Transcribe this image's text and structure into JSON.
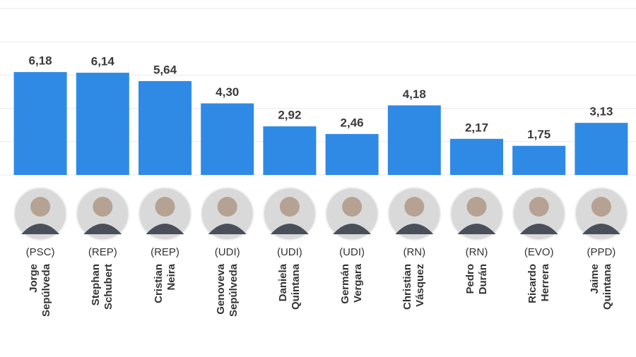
{
  "chart_data": {
    "type": "bar",
    "categories": [
      "Jorge\nSepúlveda",
      "Stephan\nSchubert",
      "Cristian\nNeira",
      "Genoveva\nSepúlveda",
      "Daniela\nQuintana",
      "Germán\nVergara",
      "Christian\nVásquez",
      "Pedro\nDurán",
      "Ricardo\nHerrera",
      "Jaime\nQuintana"
    ],
    "parties": [
      "(PSC)",
      "(REP)",
      "(REP)",
      "(UDI)",
      "(UDI)",
      "(UDI)",
      "(RN)",
      "(RN)",
      "(EVO)",
      "(PPD)"
    ],
    "values": [
      6.18,
      6.14,
      5.64,
      4.3,
      2.92,
      2.46,
      4.18,
      2.17,
      1.75,
      3.13
    ],
    "value_labels": [
      "6,18",
      "6,14",
      "5,64",
      "4,30",
      "2,92",
      "2,46",
      "4,18",
      "2,17",
      "1,75",
      "3,13"
    ],
    "color": "#2f8ae5",
    "ylim": [
      0,
      10
    ],
    "yticks": [
      0,
      2,
      4,
      6,
      8,
      10
    ],
    "grid": true
  }
}
